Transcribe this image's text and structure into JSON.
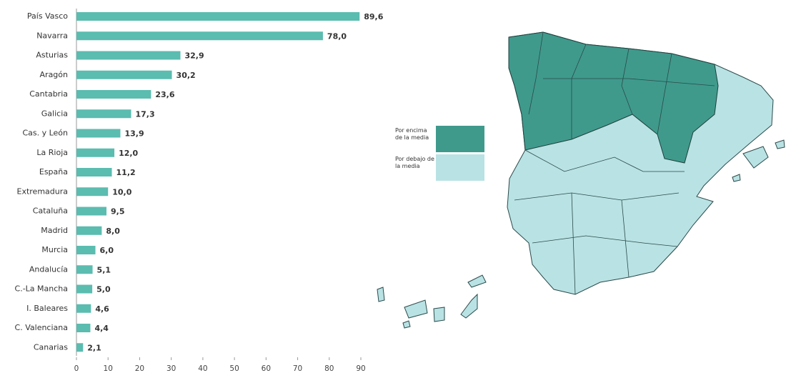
{
  "chart_data": {
    "type": "bar",
    "orientation": "horizontal",
    "categories": [
      "País Vasco",
      "Navarra",
      "Asturias",
      "Aragón",
      "Cantabria",
      "Galicia",
      "Cas. y León",
      "La Rioja",
      "España",
      "Extremadura",
      "Cataluña",
      "Madrid",
      "Murcia",
      "Andalucía",
      "C.-La Mancha",
      "I. Baleares",
      "C. Valenciana",
      "Canarias"
    ],
    "values": [
      89.6,
      78.0,
      32.9,
      30.2,
      23.6,
      17.3,
      13.9,
      12.0,
      11.2,
      10.0,
      9.5,
      8.0,
      6.0,
      5.1,
      5.0,
      4.6,
      4.4,
      2.1
    ],
    "value_labels": [
      "89,6",
      "78,0",
      "32,9",
      "30,2",
      "23,6",
      "17,3",
      "13,9",
      "12,0",
      "11,2",
      "10,0",
      "9,5",
      "8,0",
      "6,0",
      "5,1",
      "5,0",
      "4,6",
      "4,4",
      "2,1"
    ],
    "color": "#5bbcb0",
    "xlim": [
      0,
      90
    ],
    "xticks": [
      0,
      10,
      20,
      30,
      40,
      50,
      60,
      70,
      80,
      90
    ]
  },
  "map": {
    "legend": [
      {
        "label": "Por encima de la media",
        "color": "#3f9a8c"
      },
      {
        "label": "Por debajo de la media",
        "color": "#b9e2e4"
      }
    ]
  }
}
